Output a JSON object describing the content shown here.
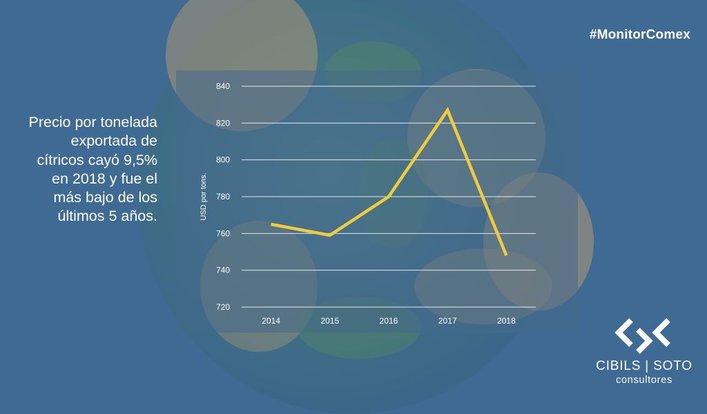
{
  "hashtag": "#MonitorComex",
  "headline": "Precio por tonelada exportada de cítricos cayó 9,5% en 2018 y fue el más bajo de los últimos 5 años.",
  "logo": {
    "name_left": "CIBILS",
    "separator": "|",
    "name_right": "SOTO",
    "subtitle": "consultores"
  },
  "colors": {
    "background": "#3f6a93",
    "line": "#f2cb3a",
    "gridline": "#ffffff",
    "text": "#ffffff"
  },
  "chart_data": {
    "type": "line",
    "categories": [
      "2014",
      "2015",
      "2016",
      "2017",
      "2018"
    ],
    "series": [
      {
        "values": [
          765,
          759,
          780,
          827,
          748
        ]
      }
    ],
    "ylabel": "USD por tons.",
    "ylim": [
      720,
      840
    ],
    "yticks": [
      840,
      820,
      800,
      780,
      760,
      740,
      720
    ],
    "grid": true,
    "legend": "none"
  }
}
